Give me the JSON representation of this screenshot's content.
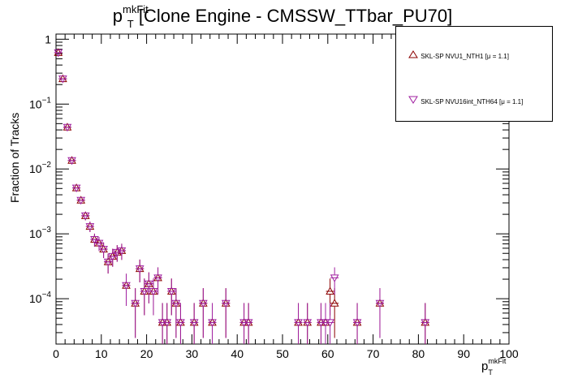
{
  "title": {
    "main": "p",
    "sup": "mkFit",
    "sub": "T",
    "rest": " [Clone Engine - CMSSW_TTbar_PU70]"
  },
  "axes": {
    "ylabel": "Fraction of Tracks",
    "xlabel_main": "p",
    "xlabel_sup": "mkFit",
    "xlabel_sub": "T"
  },
  "legend": [
    {
      "label": "SKL-SP NVU1_NTH1 [μ =  1.1]",
      "marker": "triangle-up",
      "color": "#8b0000"
    },
    {
      "label": "SKL-SP NVU16int_NTH64 [μ =  1.1]",
      "marker": "triangle-down",
      "color": "#a020a0"
    }
  ],
  "chart_data": {
    "type": "scatter",
    "xlim": [
      0,
      100
    ],
    "ylim": [
      2e-05,
      1.2
    ],
    "yscale": "log",
    "xticks": [
      0,
      10,
      20,
      30,
      40,
      50,
      60,
      70,
      80,
      90,
      100
    ],
    "yticks": [
      {
        "value": 0.0001,
        "base": "10",
        "exp": "−4"
      },
      {
        "value": 0.001,
        "base": "10",
        "exp": "−3"
      },
      {
        "value": 0.01,
        "base": "10",
        "exp": "−2"
      },
      {
        "value": 0.1,
        "base": "10",
        "exp": "−1"
      },
      {
        "value": 1,
        "base": "1",
        "exp": ""
      }
    ],
    "series": [
      {
        "name": "SKL-SP NVU1_NTH1 [μ =  1.1]",
        "marker": "triangle-up",
        "color": "#8b0000",
        "points": [
          [
            0.5,
            0.62
          ],
          [
            1.5,
            0.245
          ],
          [
            2.5,
            0.044
          ],
          [
            3.5,
            0.0135
          ],
          [
            4.5,
            0.0051
          ],
          [
            5.5,
            0.0033
          ],
          [
            6.5,
            0.0019
          ],
          [
            7.5,
            0.0013
          ],
          [
            8.5,
            0.00082
          ],
          [
            9.5,
            0.00072
          ],
          [
            10.5,
            0.00058
          ],
          [
            11.5,
            0.00037
          ],
          [
            12.5,
            0.00045
          ],
          [
            13.5,
            0.00052
          ],
          [
            14.5,
            0.00055
          ],
          [
            15.5,
            0.00016
          ],
          [
            17.5,
            8.5e-05
          ],
          [
            18.5,
            0.00029
          ],
          [
            19.5,
            0.00013
          ],
          [
            20.5,
            0.00017
          ],
          [
            21.5,
            0.00013
          ],
          [
            22.5,
            0.00021
          ],
          [
            23.5,
            4.3e-05
          ],
          [
            24.5,
            4.3e-05
          ],
          [
            25.5,
            0.00013
          ],
          [
            26.5,
            8.5e-05
          ],
          [
            27.5,
            4.3e-05
          ],
          [
            30.5,
            4.3e-05
          ],
          [
            32.5,
            8.5e-05
          ],
          [
            34.5,
            4.3e-05
          ],
          [
            37.5,
            8.5e-05
          ],
          [
            41.5,
            4.3e-05
          ],
          [
            42.5,
            4.3e-05
          ],
          [
            53.5,
            4.3e-05
          ],
          [
            55.5,
            4.3e-05
          ],
          [
            58.5,
            4.3e-05
          ],
          [
            59.5,
            4.3e-05
          ],
          [
            60.5,
            0.00013
          ],
          [
            61.5,
            8.5e-05
          ],
          [
            66.5,
            4.3e-05
          ],
          [
            71.5,
            8.5e-05
          ],
          [
            81.5,
            4.3e-05
          ]
        ]
      },
      {
        "name": "SKL-SP NVU16int_NTH64 [μ =  1.1]",
        "marker": "triangle-down",
        "color": "#a020a0",
        "points": [
          [
            0.5,
            0.62
          ],
          [
            1.5,
            0.245
          ],
          [
            2.5,
            0.044
          ],
          [
            3.5,
            0.0135
          ],
          [
            4.5,
            0.0051
          ],
          [
            5.5,
            0.0033
          ],
          [
            6.5,
            0.0019
          ],
          [
            7.5,
            0.0013
          ],
          [
            8.5,
            0.00082
          ],
          [
            9.5,
            0.00072
          ],
          [
            10.5,
            0.00058
          ],
          [
            11.5,
            0.00037
          ],
          [
            12.5,
            0.00045
          ],
          [
            13.5,
            0.00052
          ],
          [
            14.5,
            0.00055
          ],
          [
            15.5,
            0.00016
          ],
          [
            17.5,
            8.5e-05
          ],
          [
            18.5,
            0.00029
          ],
          [
            19.5,
            0.00013
          ],
          [
            20.5,
            0.00017
          ],
          [
            21.5,
            0.00013
          ],
          [
            22.5,
            0.00021
          ],
          [
            23.5,
            4.3e-05
          ],
          [
            24.5,
            4.3e-05
          ],
          [
            25.5,
            0.00013
          ],
          [
            26.5,
            8.5e-05
          ],
          [
            27.5,
            4.3e-05
          ],
          [
            30.5,
            4.3e-05
          ],
          [
            32.5,
            8.5e-05
          ],
          [
            34.5,
            4.3e-05
          ],
          [
            37.5,
            8.5e-05
          ],
          [
            41.5,
            4.3e-05
          ],
          [
            42.5,
            4.3e-05
          ],
          [
            53.5,
            4.3e-05
          ],
          [
            55.5,
            4.3e-05
          ],
          [
            58.5,
            4.3e-05
          ],
          [
            59.5,
            4.3e-05
          ],
          [
            60.5,
            4.3e-05
          ],
          [
            61.5,
            0.00021
          ],
          [
            66.5,
            4.3e-05
          ],
          [
            71.5,
            8.5e-05
          ],
          [
            81.5,
            4.3e-05
          ]
        ]
      }
    ]
  }
}
